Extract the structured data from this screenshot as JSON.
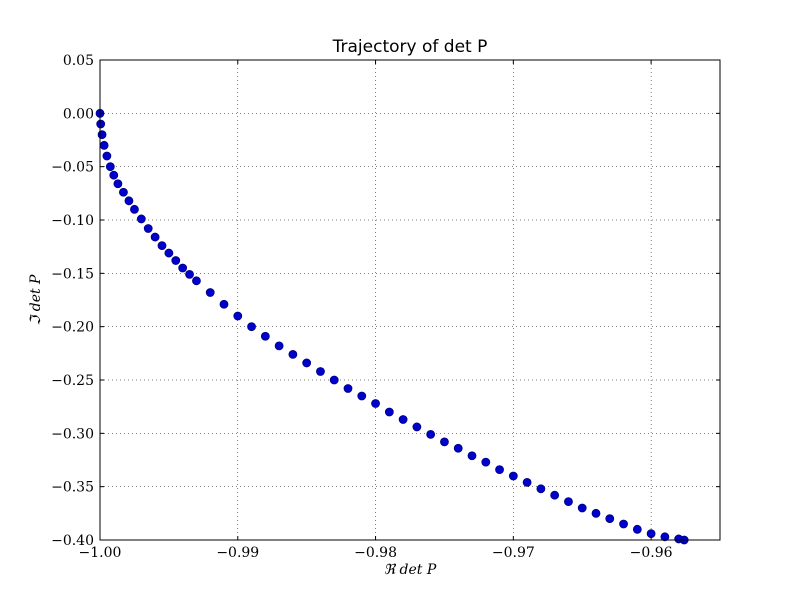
{
  "chart_data": {
    "type": "scatter",
    "title": "Trajectory of det P",
    "xlabel": "ℜ det P",
    "ylabel": "ℑ det P",
    "xlim": [
      -1.0,
      -0.955
    ],
    "ylim": [
      -0.4,
      0.05
    ],
    "x_ticks": [
      -1.0,
      -0.99,
      -0.98,
      -0.97,
      -0.96
    ],
    "x_tick_labels": [
      "−1.00",
      "−0.99",
      "−0.98",
      "−0.97",
      "−0.96"
    ],
    "y_ticks": [
      0.05,
      0.0,
      -0.05,
      -0.1,
      -0.15,
      -0.2,
      -0.25,
      -0.3,
      -0.35,
      -0.4
    ],
    "y_tick_labels": [
      "0.05",
      "0.00",
      "−0.05",
      "−0.10",
      "−0.15",
      "−0.20",
      "−0.25",
      "−0.30",
      "−0.35",
      "−0.40"
    ],
    "grid": true,
    "marker_color": "#0000cc",
    "marker_edge_color": "#000080",
    "series": [
      {
        "x": [
          -1.0,
          -0.99995,
          -0.99985,
          -0.9997,
          -0.9995,
          -0.99925,
          -0.999,
          -0.9987,
          -0.9983,
          -0.9979,
          -0.9975,
          -0.997,
          -0.9965,
          -0.996,
          -0.9955,
          -0.995,
          -0.9945,
          -0.994,
          -0.9935,
          -0.993,
          -0.992,
          -0.991,
          -0.99,
          -0.989,
          -0.988,
          -0.987,
          -0.986,
          -0.985,
          -0.984,
          -0.983,
          -0.982,
          -0.981,
          -0.98,
          -0.979,
          -0.978,
          -0.977,
          -0.976,
          -0.975,
          -0.974,
          -0.973,
          -0.972,
          -0.971,
          -0.97,
          -0.969,
          -0.968,
          -0.967,
          -0.966,
          -0.965,
          -0.964,
          -0.963,
          -0.962,
          -0.961,
          -0.96,
          -0.959,
          -0.958,
          -0.9576
        ],
        "y": [
          0.0,
          -0.01,
          -0.02,
          -0.03,
          -0.04,
          -0.05,
          -0.058,
          -0.066,
          -0.074,
          -0.082,
          -0.09,
          -0.099,
          -0.108,
          -0.116,
          -0.124,
          -0.131,
          -0.138,
          -0.145,
          -0.151,
          -0.157,
          -0.168,
          -0.179,
          -0.19,
          -0.2,
          -0.209,
          -0.218,
          -0.226,
          -0.234,
          -0.242,
          -0.25,
          -0.258,
          -0.265,
          -0.272,
          -0.28,
          -0.287,
          -0.294,
          -0.301,
          -0.308,
          -0.314,
          -0.321,
          -0.327,
          -0.334,
          -0.34,
          -0.346,
          -0.352,
          -0.358,
          -0.364,
          -0.37,
          -0.375,
          -0.38,
          -0.385,
          -0.39,
          -0.394,
          -0.397,
          -0.399,
          -0.4
        ]
      }
    ]
  }
}
